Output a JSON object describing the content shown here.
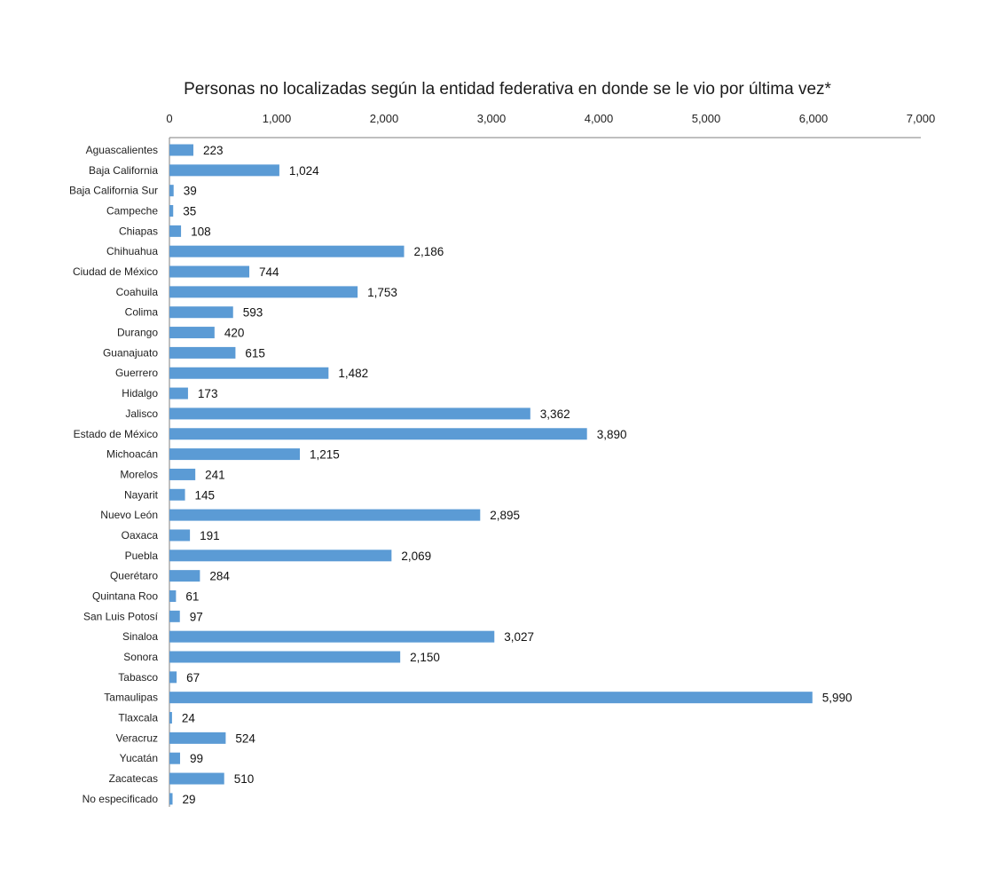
{
  "chart_data": {
    "type": "bar",
    "orientation": "horizontal",
    "title": "Personas no localizadas según la entidad federativa en donde se le vio por última vez*",
    "xlabel": "",
    "ylabel": "",
    "xlim": [
      0,
      7000
    ],
    "x_axis_position": "top",
    "grid": false,
    "legend": "none",
    "bar_color": "#5b9bd5",
    "ticks": [
      "0",
      "1,000",
      "2,000",
      "3,000",
      "4,000",
      "5,000",
      "6,000",
      "7,000"
    ],
    "tick_values": [
      0,
      1000,
      2000,
      3000,
      4000,
      5000,
      6000,
      7000
    ],
    "categories": [
      "Aguascalientes",
      "Baja California",
      "Baja California Sur",
      "Campeche",
      "Chiapas",
      "Chihuahua",
      "Ciudad de México",
      "Coahuila",
      "Colima",
      "Durango",
      "Guanajuato",
      "Guerrero",
      "Hidalgo",
      "Jalisco",
      "Estado de México",
      "Michoacán",
      "Morelos",
      "Nayarit",
      "Nuevo León",
      "Oaxaca",
      "Puebla",
      "Querétaro",
      "Quintana Roo",
      "San Luis Potosí",
      "Sinaloa",
      "Sonora",
      "Tabasco",
      "Tamaulipas",
      "Tlaxcala",
      "Veracruz",
      "Yucatán",
      "Zacatecas",
      "No especificado"
    ],
    "values": [
      223,
      1024,
      39,
      35,
      108,
      2186,
      744,
      1753,
      593,
      420,
      615,
      1482,
      173,
      3362,
      3890,
      1215,
      241,
      145,
      2895,
      191,
      2069,
      284,
      61,
      97,
      3027,
      2150,
      67,
      5990,
      24,
      524,
      99,
      510,
      29
    ],
    "value_labels": [
      "223",
      "1,024",
      "39",
      "35",
      "108",
      "2,186",
      "744",
      "1,753",
      "593",
      "420",
      "615",
      "1,482",
      "173",
      "3,362",
      "3,890",
      "1,215",
      "241",
      "145",
      "2,895",
      "191",
      "2,069",
      "284",
      "61",
      "97",
      "3,027",
      "2,150",
      "67",
      "5,990",
      "24",
      "524",
      "99",
      "510",
      "29"
    ]
  }
}
